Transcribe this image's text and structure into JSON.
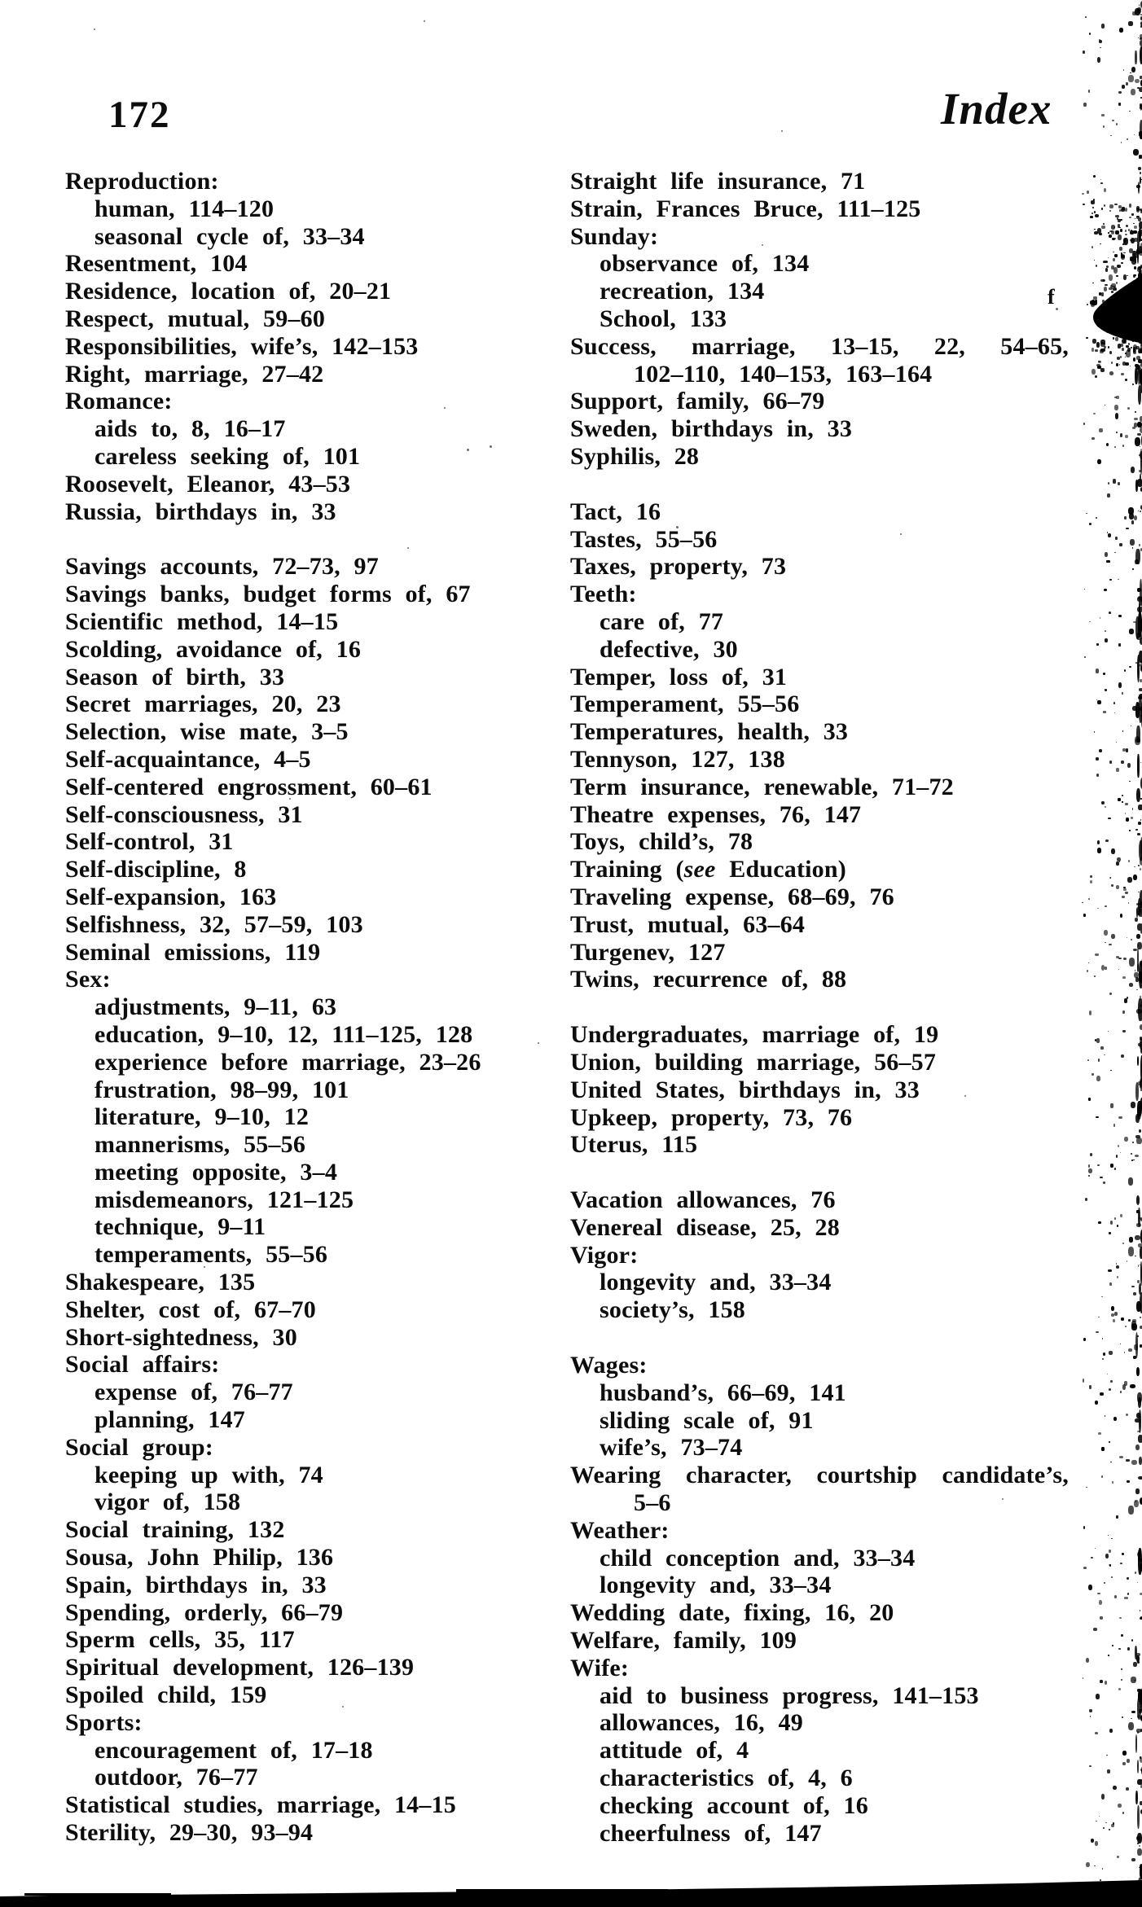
{
  "page": {
    "number": "172",
    "running_head": "Index",
    "edge_mark": "f",
    "ink_color": "#0d0d0d",
    "background_color": "#ffffff"
  },
  "index": {
    "left_column": {
      "groups": [
        [
          {
            "text": "Reproduction:",
            "indent": 0
          },
          {
            "text": "human, 114–120",
            "indent": 1
          },
          {
            "text": "seasonal cycle of, 33–34",
            "indent": 1
          },
          {
            "text": "Resentment, 104",
            "indent": 0
          },
          {
            "text": "Residence, location of, 20–21",
            "indent": 0
          },
          {
            "text": "Respect, mutual, 59–60",
            "indent": 0
          },
          {
            "text": "Responsibilities, wife’s, 142–153",
            "indent": 0
          },
          {
            "text": "Right, marriage, 27–42",
            "indent": 0
          },
          {
            "text": "Romance:",
            "indent": 0
          },
          {
            "text": "aids to, 8, 16–17",
            "indent": 1
          },
          {
            "text": "careless seeking of, 101",
            "indent": 1
          },
          {
            "text": "Roosevelt, Eleanor, 43–53",
            "indent": 0
          },
          {
            "text": "Russia, birthdays in, 33",
            "indent": 0
          }
        ],
        [
          {
            "text": "Savings accounts, 72–73, 97",
            "indent": 0
          },
          {
            "text": "Savings banks, budget forms of, 67",
            "indent": 0
          },
          {
            "text": "Scientific method, 14–15",
            "indent": 0
          },
          {
            "text": "Scolding, avoidance of, 16",
            "indent": 0
          },
          {
            "text": "Season of birth, 33",
            "indent": 0
          },
          {
            "text": "Secret marriages, 20, 23",
            "indent": 0
          },
          {
            "text": "Selection, wise mate, 3–5",
            "indent": 0
          },
          {
            "text": "Self-acquaintance, 4–5",
            "indent": 0
          },
          {
            "text": "Self-centered engrossment, 60–61",
            "indent": 0
          },
          {
            "text": "Self-consciousness, 31",
            "indent": 0
          },
          {
            "text": "Self-control, 31",
            "indent": 0
          },
          {
            "text": "Self-discipline, 8",
            "indent": 0
          },
          {
            "text": "Self-expansion, 163",
            "indent": 0
          },
          {
            "text": "Selfishness, 32, 57–59, 103",
            "indent": 0
          },
          {
            "text": "Seminal emissions, 119",
            "indent": 0
          },
          {
            "text": "Sex:",
            "indent": 0
          },
          {
            "text": "adjustments, 9–11, 63",
            "indent": 1
          },
          {
            "text": "education, 9–10, 12, 111–125, 128",
            "indent": 1
          },
          {
            "text": "experience before marriage, 23–26",
            "indent": 1
          },
          {
            "text": "frustration, 98–99, 101",
            "indent": 1
          },
          {
            "text": "literature, 9–10, 12",
            "indent": 1
          },
          {
            "text": "mannerisms, 55–56",
            "indent": 1
          },
          {
            "text": "meeting opposite, 3–4",
            "indent": 1
          },
          {
            "text": "misdemeanors, 121–125",
            "indent": 1
          },
          {
            "text": "technique, 9–11",
            "indent": 1
          },
          {
            "text": "temperaments, 55–56",
            "indent": 1
          },
          {
            "text": "Shakespeare, 135",
            "indent": 0
          },
          {
            "text": "Shelter, cost of, 67–70",
            "indent": 0
          },
          {
            "text": "Short-sightedness, 30",
            "indent": 0
          },
          {
            "text": "Social affairs:",
            "indent": 0
          },
          {
            "text": "expense of, 76–77",
            "indent": 1
          },
          {
            "text": "planning, 147",
            "indent": 1
          },
          {
            "text": "Social group:",
            "indent": 0
          },
          {
            "text": "keeping up with, 74",
            "indent": 1
          },
          {
            "text": "vigor of, 158",
            "indent": 1
          },
          {
            "text": "Social training, 132",
            "indent": 0
          },
          {
            "text": "Sousa, John Philip, 136",
            "indent": 0
          },
          {
            "text": "Spain, birthdays in, 33",
            "indent": 0
          },
          {
            "text": "Spending, orderly, 66–79",
            "indent": 0
          },
          {
            "text": "Sperm cells, 35, 117",
            "indent": 0
          },
          {
            "text": "Spiritual development, 126–139",
            "indent": 0
          },
          {
            "text": "Spoiled child, 159",
            "indent": 0
          },
          {
            "text": "Sports:",
            "indent": 0
          },
          {
            "text": "encouragement of, 17–18",
            "indent": 1
          },
          {
            "text": "outdoor, 76–77",
            "indent": 1
          },
          {
            "text": "Statistical studies, marriage, 14–15",
            "indent": 0
          },
          {
            "text": "Sterility, 29–30, 93–94",
            "indent": 0
          }
        ]
      ]
    },
    "right_column": {
      "groups": [
        [
          {
            "text": "Straight life insurance, 71",
            "indent": 0
          },
          {
            "text": "Strain, Frances Bruce, 111–125",
            "indent": 0
          },
          {
            "text": "Sunday:",
            "indent": 0
          },
          {
            "text": "observance of, 134",
            "indent": 1
          },
          {
            "text": "recreation, 134",
            "indent": 1
          },
          {
            "text": "School, 133",
            "indent": 1
          },
          {
            "text": "Success, marriage, 13–15, 22, 54–65,",
            "indent": 0,
            "justify": true
          },
          {
            "text": "102–110, 140–153, 163–164",
            "indent": 2
          },
          {
            "text": "Support, family, 66–79",
            "indent": 0
          },
          {
            "text": "Sweden, birthdays in, 33",
            "indent": 0
          },
          {
            "text": "Syphilis, 28",
            "indent": 0
          }
        ],
        [
          {
            "text": "Tact, 16",
            "indent": 0
          },
          {
            "text": "Tastes, 55–56",
            "indent": 0
          },
          {
            "text": "Taxes, property, 73",
            "indent": 0
          },
          {
            "text": "Teeth:",
            "indent": 0
          },
          {
            "text": "care of, 77",
            "indent": 1
          },
          {
            "text": "defective, 30",
            "indent": 1
          },
          {
            "text": "Temper, loss of, 31",
            "indent": 0
          },
          {
            "text": "Temperament, 55–56",
            "indent": 0
          },
          {
            "text": "Temperatures, health, 33",
            "indent": 0
          },
          {
            "text": "Tennyson, 127, 138",
            "indent": 0
          },
          {
            "text": "Term insurance, renewable, 71–72",
            "indent": 0
          },
          {
            "text": "Theatre expenses, 76, 147",
            "indent": 0
          },
          {
            "text": "Toys, child’s, 78",
            "indent": 0
          },
          {
            "segments": [
              {
                "text": "Training ("
              },
              {
                "text": "see",
                "italic": true
              },
              {
                "text": " Education)"
              }
            ],
            "indent": 0
          },
          {
            "text": "Traveling expense, 68–69, 76",
            "indent": 0
          },
          {
            "text": "Trust, mutual, 63–64",
            "indent": 0
          },
          {
            "text": "Turgenev, 127",
            "indent": 0
          },
          {
            "text": "Twins, recurrence of, 88",
            "indent": 0
          }
        ],
        [
          {
            "text": "Undergraduates, marriage of, 19",
            "indent": 0
          },
          {
            "text": "Union, building marriage, 56–57",
            "indent": 0
          },
          {
            "text": "United States, birthdays in, 33",
            "indent": 0
          },
          {
            "text": "Upkeep, property, 73, 76",
            "indent": 0
          },
          {
            "text": "Uterus, 115",
            "indent": 0
          }
        ],
        [
          {
            "text": "Vacation allowances, 76",
            "indent": 0
          },
          {
            "text": "Venereal disease, 25, 28",
            "indent": 0
          },
          {
            "text": "Vigor:",
            "indent": 0
          },
          {
            "text": "longevity and, 33–34",
            "indent": 1
          },
          {
            "text": "society’s, 158",
            "indent": 1
          }
        ],
        [
          {
            "text": "Wages:",
            "indent": 0
          },
          {
            "text": "husband’s, 66–69, 141",
            "indent": 1
          },
          {
            "text": "sliding scale of, 91",
            "indent": 1
          },
          {
            "text": "wife’s, 73–74",
            "indent": 1
          },
          {
            "text": "Wearing character, courtship candidate’s,",
            "indent": 0,
            "justify": true
          },
          {
            "text": "5–6",
            "indent": 2
          },
          {
            "text": "Weather:",
            "indent": 0
          },
          {
            "text": "child conception and, 33–34",
            "indent": 1
          },
          {
            "text": "longevity and, 33–34",
            "indent": 1
          },
          {
            "text": "Wedding date, fixing, 16, 20",
            "indent": 0
          },
          {
            "text": "Welfare, family, 109",
            "indent": 0
          },
          {
            "text": "Wife:",
            "indent": 0
          },
          {
            "text": "aid to business progress, 141–153",
            "indent": 1
          },
          {
            "text": "allowances, 16, 49",
            "indent": 1
          },
          {
            "text": "attitude of, 4",
            "indent": 1
          },
          {
            "text": "characteristics of, 4, 6",
            "indent": 1
          },
          {
            "text": "checking account of, 16",
            "indent": 1
          },
          {
            "text": "cheerfulness of, 147",
            "indent": 1
          }
        ]
      ]
    }
  }
}
